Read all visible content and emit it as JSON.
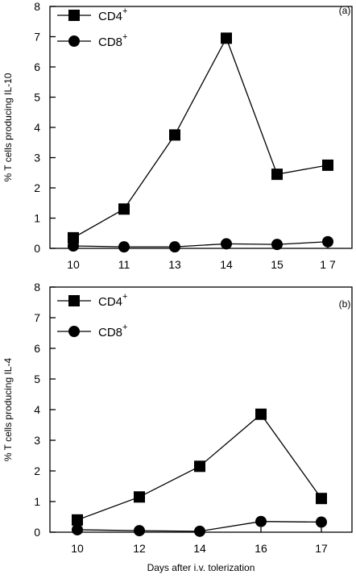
{
  "chart_data": [
    {
      "type": "line",
      "panel_label": "(a)",
      "ylabel": "% T cells producing IL-10",
      "xlabel": "",
      "categories": [
        "10",
        "11",
        "13",
        "14",
        "15",
        "1 7"
      ],
      "ylim": [
        0,
        8
      ],
      "yticks": [
        "0",
        "1",
        "2",
        "3",
        "4",
        "5",
        "6",
        "7",
        "8"
      ],
      "legend_position": "top-left",
      "series": [
        {
          "name": "CD4",
          "name_sup": "+",
          "marker": "square",
          "values": [
            0.35,
            1.3,
            3.75,
            6.95,
            2.45,
            2.75
          ]
        },
        {
          "name": "CD8",
          "name_sup": "+",
          "marker": "circle",
          "values": [
            0.08,
            0.05,
            0.05,
            0.15,
            0.13,
            0.22
          ]
        }
      ]
    },
    {
      "type": "line",
      "panel_label": "(b)",
      "ylabel": "% T cells producing IL-4",
      "xlabel": "Days after i.v. tolerization",
      "categories": [
        "10",
        "12",
        "14",
        "16",
        "17"
      ],
      "ylim": [
        0,
        8
      ],
      "yticks": [
        "0",
        "1",
        "2",
        "3",
        "4",
        "5",
        "6",
        "7",
        "8"
      ],
      "legend_position": "top-left",
      "series": [
        {
          "name": "CD4",
          "name_sup": "+",
          "marker": "square",
          "values": [
            0.4,
            1.15,
            2.15,
            3.85,
            1.1
          ]
        },
        {
          "name": "CD8",
          "name_sup": "+",
          "marker": "circle",
          "values": [
            0.08,
            0.05,
            0.03,
            0.35,
            0.33
          ]
        }
      ]
    }
  ]
}
